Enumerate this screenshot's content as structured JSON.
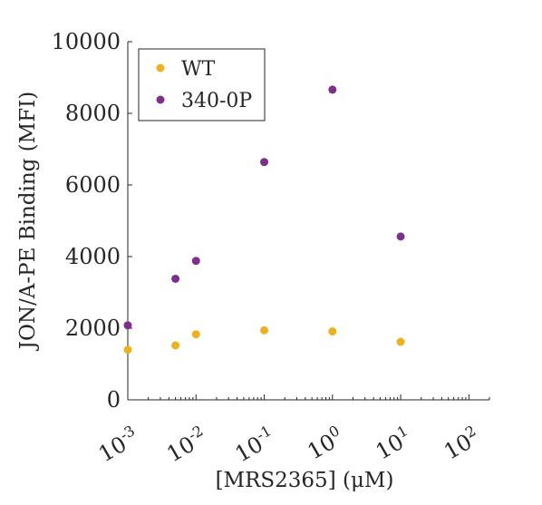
{
  "chart_data": {
    "type": "scatter",
    "title": "",
    "xlabel": "[MRS2365] (μM)",
    "ylabel": "JON/A-PE Binding (MFI)",
    "xscale": "log",
    "xlim": [
      0.001,
      200
    ],
    "ylim": [
      0,
      10000
    ],
    "xticks": [
      0.001,
      0.01,
      0.1,
      1,
      10,
      100
    ],
    "xtick_labels": [
      "10-3",
      "10-2",
      "10-1",
      "100",
      "101",
      "102"
    ],
    "yticks": [
      0,
      2000,
      4000,
      6000,
      8000,
      10000
    ],
    "ytick_labels": [
      "0",
      "2000",
      "4000",
      "6000",
      "8000",
      "10000"
    ],
    "grid": false,
    "legend": "top-left",
    "series": [
      {
        "name": "WT",
        "color": "#EDB120",
        "x": [
          0.001,
          0.005,
          0.01,
          0.1,
          1,
          10
        ],
        "y": [
          1400,
          1520,
          1830,
          1940,
          1910,
          1620
        ]
      },
      {
        "name": "340-0P",
        "color": "#7E2F8E",
        "x": [
          0.001,
          0.005,
          0.01,
          0.1,
          1,
          10
        ],
        "y": [
          2080,
          3380,
          3880,
          6640,
          8660,
          4560
        ]
      }
    ]
  }
}
